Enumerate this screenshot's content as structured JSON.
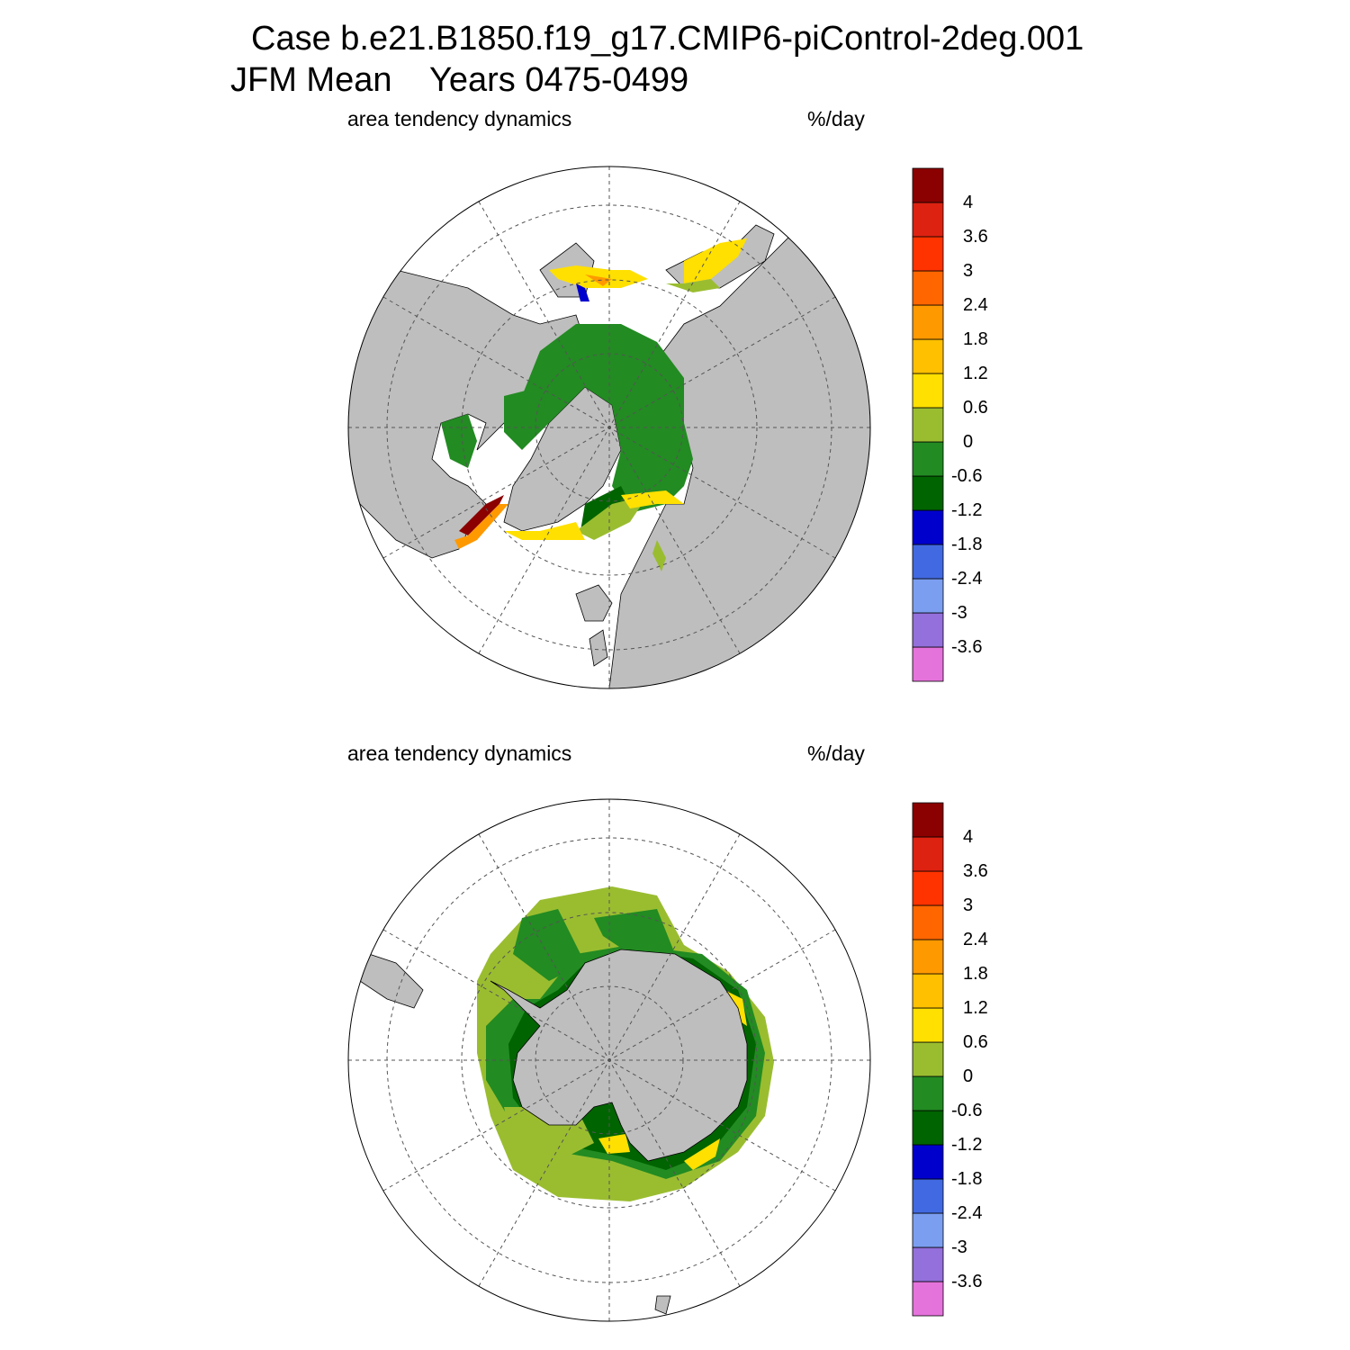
{
  "title": {
    "line1": "Case b.e21.B1850.f19_g17.CMIP6-piControl-2deg.001",
    "line2_season": "JFM Mean",
    "line2_years": "Years 0475-0499"
  },
  "colorbar": {
    "colors": [
      "#e573dc",
      "#9370db",
      "#7b9ef0",
      "#4169e1",
      "#0000cd",
      "#006400",
      "#228b22",
      "#9abd30",
      "#ffe000",
      "#ffc000",
      "#ff9900",
      "#ff6600",
      "#ff3300",
      "#dd2211",
      "#8b0000"
    ],
    "labels": [
      "-3.6",
      "-3",
      "-2.4",
      "-1.8",
      "-1.2",
      "-0.6",
      "0",
      "0.6",
      "1.2",
      "1.8",
      "2.4",
      "3",
      "3.6",
      "4"
    ]
  },
  "colors": {
    "land": "#bebebe",
    "ocean_no_ice": "#ffffff",
    "grid": "#555555"
  },
  "panels": [
    {
      "id": "north",
      "hemisphere": "Northern Hemisphere polar stereographic",
      "left_label": "area tendency dynamics",
      "right_label": "%/day"
    },
    {
      "id": "south",
      "hemisphere": "Southern Hemisphere polar stereographic",
      "left_label": "area tendency dynamics",
      "right_label": "%/day"
    }
  ]
}
